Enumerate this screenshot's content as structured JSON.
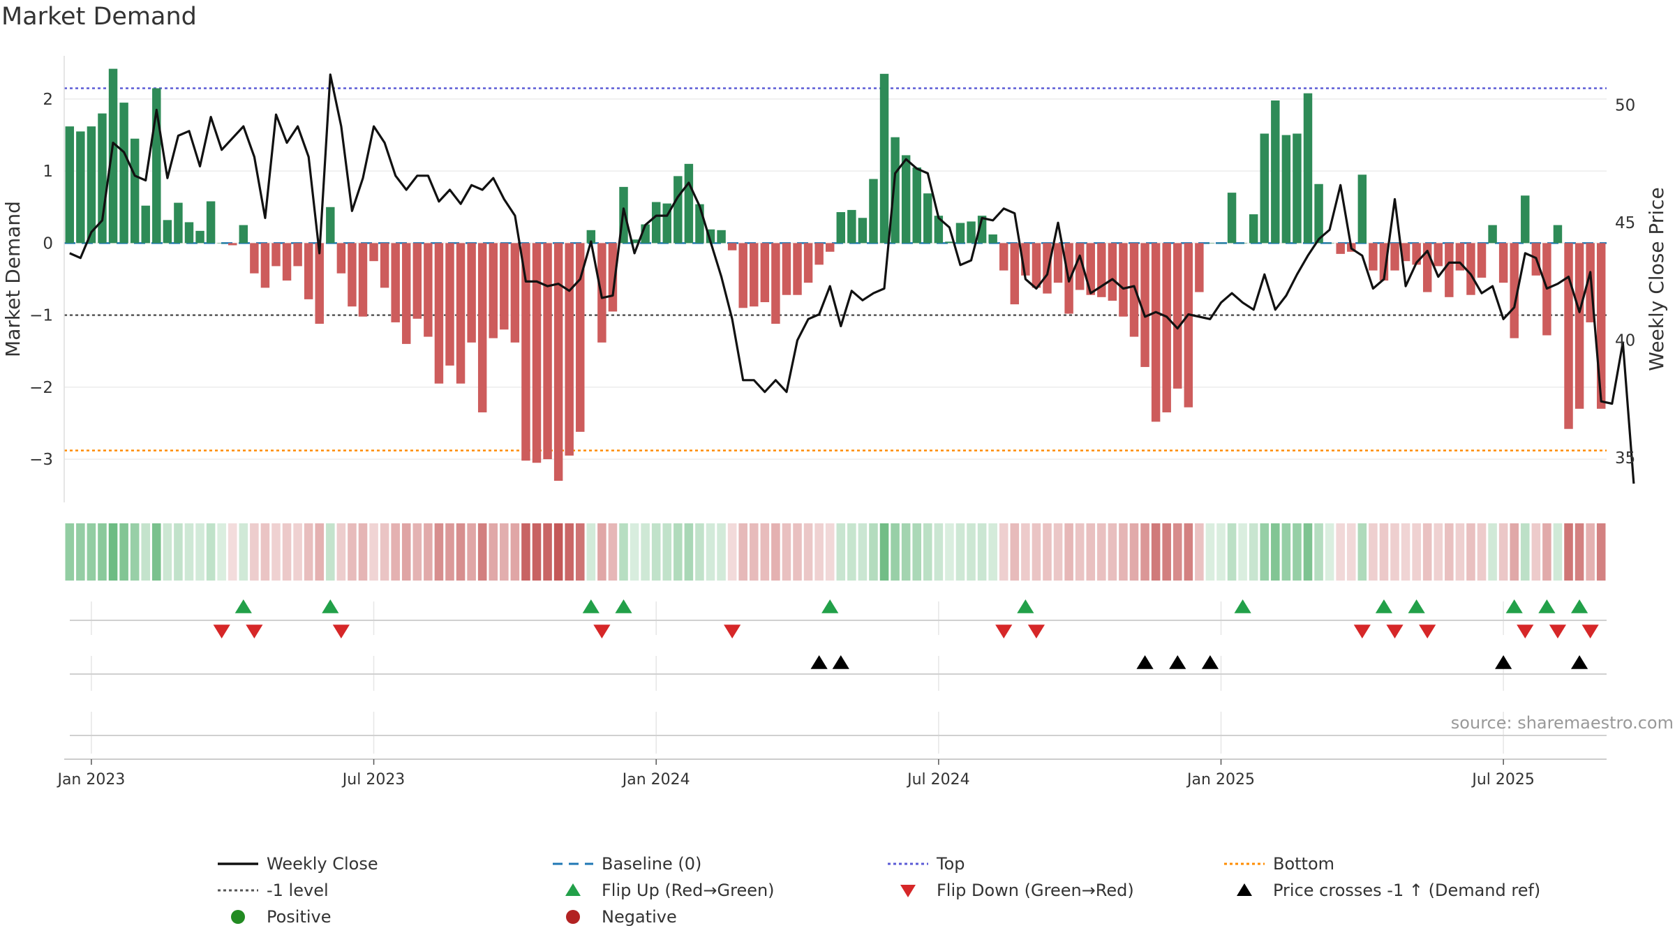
{
  "colors": {
    "positive_bar": "#2e8b57",
    "negative_bar": "#cd5c5c",
    "price_line": "#111111",
    "baseline": "#1f77b4",
    "top": "#5b5bd6",
    "minus_one": "#555555",
    "bottom": "#ff8c00",
    "flip_up": "#22a049",
    "flip_down": "#d62728",
    "cross": "#000000",
    "positive_dot": "#228b22",
    "negative_dot": "#b22222"
  },
  "chart_data": {
    "type": "bar",
    "title": "Market Demand",
    "ylabel": "Market Demand",
    "y2label": "Weekly Close Price",
    "ylim": [
      -3.6,
      2.6
    ],
    "y2lim": [
      33.1,
      52.1
    ],
    "yticks": [
      "2",
      "1",
      "0",
      "−1",
      "−2",
      "−3"
    ],
    "yticks_values": [
      2,
      1,
      0,
      -1,
      -2,
      -3
    ],
    "y2ticks": [
      "50",
      "45",
      "40",
      "35"
    ],
    "y2ticks_values": [
      50,
      45,
      40,
      35
    ],
    "xticks": [
      "Jan 2023",
      "Jul 2023",
      "Jan 2024",
      "Jul 2024",
      "Jan 2025",
      "Jul 2025"
    ],
    "xticks_week_index": [
      2,
      28,
      54,
      80,
      106,
      132
    ],
    "reference_lines": {
      "baseline": 0,
      "minus_one": -1,
      "top": 2.15,
      "bottom": -2.88
    },
    "market_demand_weekly": [
      1.62,
      1.55,
      1.62,
      1.8,
      2.42,
      1.95,
      1.45,
      0.52,
      2.15,
      0.32,
      0.56,
      0.29,
      0.17,
      0.58,
      0.0,
      -0.03,
      0.25,
      -0.42,
      -0.62,
      -0.32,
      -0.52,
      -0.32,
      -0.78,
      -1.12,
      0.5,
      -0.42,
      -0.88,
      -1.02,
      -0.25,
      -0.62,
      -1.1,
      -1.4,
      -1.05,
      -1.3,
      -1.95,
      -1.7,
      -1.95,
      -1.38,
      -2.35,
      -1.32,
      -1.2,
      -1.38,
      -3.02,
      -3.05,
      -3.0,
      -3.3,
      -2.95,
      -2.62,
      0.18,
      -1.38,
      -0.95,
      0.78,
      0.05,
      0.26,
      0.57,
      0.55,
      0.93,
      1.1,
      0.54,
      0.19,
      0.18,
      -0.1,
      -0.9,
      -0.88,
      -0.82,
      -1.12,
      -0.72,
      -0.72,
      -0.55,
      -0.3,
      -0.12,
      0.43,
      0.46,
      0.35,
      0.89,
      2.35,
      1.47,
      1.22,
      1.05,
      0.69,
      0.38,
      0.02,
      0.28,
      0.3,
      0.38,
      0.12,
      -0.38,
      -0.85,
      -0.45,
      -0.62,
      -0.7,
      -0.55,
      -0.98,
      -0.65,
      -0.72,
      -0.75,
      -0.8,
      -1.02,
      -1.3,
      -1.72,
      -2.48,
      -2.35,
      -2.02,
      -2.28,
      -0.68,
      0.0,
      0.0,
      0.7,
      0.0,
      0.4,
      1.52,
      1.98,
      1.5,
      1.52,
      2.08,
      0.82,
      0.0,
      -0.15,
      -0.12,
      0.95,
      -0.38,
      -0.52,
      -0.38,
      -0.25,
      -0.3,
      -0.68,
      -0.32,
      -0.75,
      -0.38,
      -0.72,
      -0.48,
      0.25,
      -0.55,
      -1.32,
      0.66,
      -0.45,
      -1.28,
      0.25,
      -2.58,
      -2.3,
      -1.1,
      -2.3
    ],
    "weekly_close": [
      43.7,
      43.5,
      44.6,
      45.1,
      48.4,
      48.0,
      47.0,
      46.8,
      49.8,
      46.9,
      48.7,
      48.9,
      47.4,
      49.5,
      48.1,
      48.6,
      49.1,
      47.8,
      45.2,
      49.6,
      48.4,
      49.1,
      47.8,
      43.7,
      51.3,
      49.1,
      45.5,
      46.9,
      49.1,
      48.4,
      47.0,
      46.4,
      47.0,
      47.0,
      45.9,
      46.4,
      45.8,
      46.6,
      46.4,
      46.9,
      46.0,
      45.3,
      42.5,
      42.5,
      42.3,
      42.4,
      42.1,
      42.6,
      44.2,
      41.8,
      41.9,
      45.6,
      43.7,
      44.9,
      45.3,
      45.3,
      46.1,
      46.7,
      45.7,
      44.2,
      42.7,
      40.9,
      38.3,
      38.3,
      37.8,
      38.3,
      37.8,
      40.0,
      40.9,
      41.1,
      42.3,
      40.6,
      42.1,
      41.7,
      42.0,
      42.2,
      47.1,
      47.7,
      47.3,
      47.1,
      45.2,
      44.8,
      43.2,
      43.4,
      45.2,
      45.1,
      45.6,
      45.4,
      42.6,
      42.2,
      42.8,
      45.0,
      42.5,
      43.6,
      42.0,
      42.3,
      42.6,
      42.2,
      42.3,
      41.0,
      41.2,
      41.0,
      40.5,
      41.1,
      41.0,
      40.9,
      41.6,
      42.0,
      41.6,
      41.3,
      42.8,
      41.3,
      41.9,
      42.8,
      43.6,
      44.3,
      44.7,
      46.6,
      43.9,
      43.6,
      42.2,
      42.6,
      46.0,
      42.3,
      43.3,
      43.8,
      42.7,
      43.3,
      43.3,
      42.8,
      42.0,
      42.3,
      40.9,
      41.4,
      43.7,
      43.5,
      42.2,
      42.4,
      42.7,
      41.2,
      42.9,
      37.4,
      37.3,
      39.9,
      33.9
    ],
    "flip_up_week_index": [
      16,
      24,
      48,
      51,
      70,
      88,
      108,
      121,
      124,
      133,
      136,
      139
    ],
    "flip_down_week_index": [
      14,
      17,
      25,
      49,
      61,
      86,
      89,
      119,
      122,
      125,
      134,
      137,
      140
    ],
    "price_cross_week_index": [
      69,
      71,
      99,
      102,
      105,
      132,
      139
    ]
  },
  "legend": [
    {
      "label": "Weekly Close",
      "symbol": "line",
      "color": "#111111"
    },
    {
      "label": "Baseline (0)",
      "symbol": "dash",
      "color": "#1f77b4"
    },
    {
      "label": "Top",
      "symbol": "dot",
      "color": "#5b5bd6"
    },
    {
      "label": "Bottom",
      "symbol": "dot",
      "color": "#ff8c00"
    },
    {
      "label": "-1 level",
      "symbol": "dot",
      "color": "#555555"
    },
    {
      "label": "Flip Up (Red→Green)",
      "symbol": "triangle-up",
      "color": "#22a049"
    },
    {
      "label": "Flip Down (Green→Red)",
      "symbol": "triangle-down",
      "color": "#d62728"
    },
    {
      "label": "Price crosses -1 ↑ (Demand ref)",
      "symbol": "triangle-up",
      "color": "#000000"
    },
    {
      "label": "Positive",
      "symbol": "circle",
      "color": "#228b22"
    },
    {
      "label": "Negative",
      "symbol": "circle",
      "color": "#b22222"
    }
  ],
  "source": "source: sharemaestro.com"
}
